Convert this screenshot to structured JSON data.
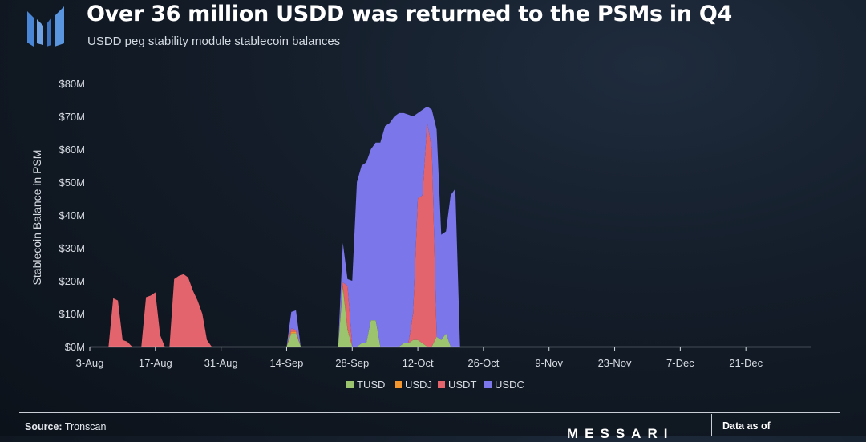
{
  "header": {
    "title": "Over 36 million USDD was returned to the PSMs in Q4",
    "subtitle": "USDD peg stability module stablecoin balances"
  },
  "footer": {
    "source_label": "Source:",
    "source_value": "Tronscan",
    "brand": "MESSARI",
    "data_as_of": "Data as of"
  },
  "colors": {
    "TUSD": "#9cc36e",
    "USDJ": "#f2962d",
    "USDT": "#e3646c",
    "USDC": "#7b76ea",
    "axis": "#d7dbe2",
    "logo": "#4a86d6"
  },
  "chart_data": {
    "type": "area",
    "stacked": true,
    "ylabel": "Stablecoin Balance in PSM",
    "xlabel": "",
    "ylim": [
      0,
      80
    ],
    "y_ticks": [
      0,
      10,
      20,
      30,
      40,
      50,
      60,
      70,
      80
    ],
    "y_tick_labels": [
      "$0M",
      "$10M",
      "$20M",
      "$30M",
      "$40M",
      "$50M",
      "$60M",
      "$70M",
      "$80M"
    ],
    "x_ticks": [
      0,
      14,
      28,
      42,
      56,
      70,
      84,
      98,
      112,
      126,
      140
    ],
    "x_tick_labels": [
      "3-Aug",
      "17-Aug",
      "31-Aug",
      "14-Sep",
      "28-Sep",
      "12-Oct",
      "26-Oct",
      "9-Nov",
      "23-Nov",
      "7-Dec",
      "21-Dec"
    ],
    "xlim": [
      0,
      154
    ],
    "grid": false,
    "legend_position": "bottom",
    "legend": [
      "TUSD",
      "USDJ",
      "USDT",
      "USDC"
    ],
    "x": [
      0,
      4,
      5,
      6,
      7,
      8,
      9,
      11,
      12,
      13,
      14,
      15,
      16,
      17,
      18,
      19,
      20,
      21,
      22,
      23,
      24,
      25,
      26,
      27,
      28,
      42,
      43,
      44,
      45,
      53,
      54,
      55,
      56,
      57,
      58,
      59,
      60,
      61,
      62,
      63,
      64,
      65,
      66,
      67,
      68,
      69,
      70,
      71,
      72,
      73,
      74,
      75,
      76,
      77,
      78,
      79,
      154
    ],
    "series": [
      {
        "name": "TUSD",
        "values": [
          0,
          0,
          0,
          0,
          0,
          0,
          0,
          0,
          0,
          0,
          0,
          0,
          0,
          0,
          0,
          0,
          0,
          0,
          0,
          0,
          0,
          0,
          0,
          0,
          0,
          0,
          4,
          4,
          0,
          0,
          18,
          5,
          0,
          0,
          1,
          1,
          8,
          8,
          0,
          0,
          0,
          0,
          0,
          1,
          1,
          2,
          2,
          1,
          0,
          0,
          3,
          2,
          4,
          0,
          0,
          0,
          0
        ]
      },
      {
        "name": "USDJ",
        "values": [
          0,
          0,
          0,
          0,
          0,
          0,
          0,
          0,
          0,
          0,
          0,
          0,
          0,
          0,
          0,
          0,
          0,
          0,
          0,
          0,
          0,
          0,
          0,
          0,
          0,
          0,
          0.5,
          0.5,
          0,
          0,
          0.5,
          0.5,
          0,
          0,
          0,
          0,
          0,
          0,
          0,
          0,
          0,
          0,
          0,
          0,
          0,
          0,
          0,
          0,
          0,
          0,
          0,
          0,
          0,
          0,
          0,
          0,
          0
        ]
      },
      {
        "name": "USDT",
        "values": [
          0,
          0,
          14.7,
          14,
          2,
          1.5,
          0,
          0,
          15,
          15.5,
          16.5,
          3.5,
          0,
          0,
          20.5,
          21.5,
          22,
          21,
          17,
          14,
          10,
          2,
          0,
          0,
          0,
          0,
          1,
          0.5,
          0,
          0,
          1,
          13,
          0,
          0,
          0,
          0,
          0,
          0,
          0,
          0,
          0,
          0,
          0,
          0,
          0,
          8,
          43,
          45,
          68,
          60,
          0,
          0,
          0,
          0,
          0,
          0,
          0
        ]
      },
      {
        "name": "USDC",
        "values": [
          0,
          0,
          0,
          0,
          0,
          0,
          0,
          0,
          0,
          0,
          0,
          0,
          0,
          0,
          0,
          0,
          0,
          0,
          0,
          0,
          0,
          0,
          0,
          0,
          0,
          0,
          5,
          6,
          0,
          0,
          12,
          2,
          20,
          50,
          54,
          55,
          52,
          54,
          62,
          67,
          68,
          70,
          71,
          70,
          69.5,
          60,
          26,
          26,
          5,
          12,
          63,
          32,
          31,
          46,
          48,
          0,
          0
        ]
      }
    ]
  }
}
